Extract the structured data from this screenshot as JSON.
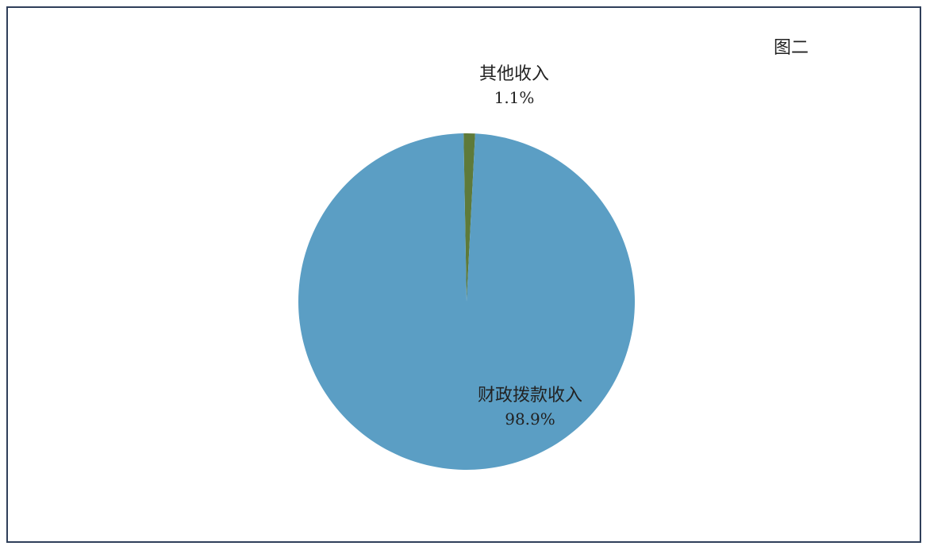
{
  "figure_label": "图二",
  "chart_data": {
    "type": "pie",
    "title": "",
    "slices": [
      {
        "label": "其他收入",
        "value": 1.1,
        "value_text": "1.1%",
        "color": "#5e7a3a"
      },
      {
        "label": "财政拨款收入",
        "value": 98.9,
        "value_text": "98.9%",
        "color": "#5b9ec4"
      }
    ],
    "legend": "none"
  }
}
